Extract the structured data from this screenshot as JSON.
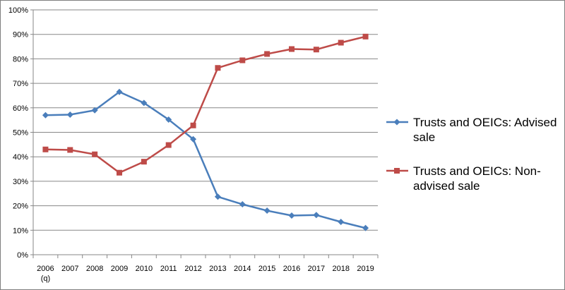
{
  "chart_data": {
    "type": "line",
    "categories": [
      "2006",
      "2007",
      "2008",
      "2009",
      "2010",
      "2011",
      "2012",
      "2013",
      "2014",
      "2015",
      "2016",
      "2017",
      "2018",
      "2019"
    ],
    "category_sublabels": {
      "2006": "(q)"
    },
    "y_ticks": [
      "0%",
      "10%",
      "20%",
      "30%",
      "40%",
      "50%",
      "60%",
      "70%",
      "80%",
      "90%",
      "100%"
    ],
    "ylim": [
      0,
      100
    ],
    "y_unit": "%",
    "grid": "horizontal",
    "legend_position": "right",
    "series": [
      {
        "name": "Trusts and OEICs: Advised sale",
        "legend_lines": [
          "Trusts and OEICs: Advised",
          "sale"
        ],
        "color": "#4a7ebb",
        "marker": "diamond",
        "values": [
          57.0,
          57.2,
          59.0,
          66.5,
          62.0,
          55.2,
          47.2,
          23.7,
          20.6,
          18.0,
          16.0,
          16.2,
          13.4,
          10.9
        ]
      },
      {
        "name": "Trusts and OEICs: Non-advised sale",
        "legend_lines": [
          "Trusts and OEICs: Non-",
          "advised sale"
        ],
        "color": "#be4b48",
        "marker": "square",
        "values": [
          43.0,
          42.8,
          41.0,
          33.5,
          38.0,
          44.8,
          52.8,
          76.3,
          79.4,
          82.0,
          84.0,
          83.8,
          86.6,
          89.1
        ]
      }
    ]
  }
}
